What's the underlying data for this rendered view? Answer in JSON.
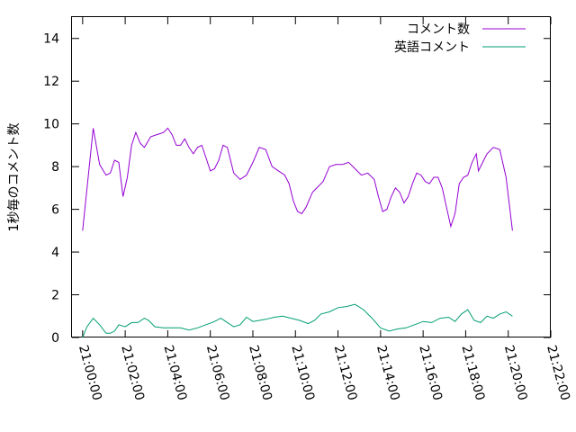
{
  "chart_data": {
    "type": "line",
    "ylabel": "1秒毎のコメント数",
    "xlabel": "",
    "title": "",
    "x_ticks": [
      "21:00:00",
      "21:02:00",
      "21:04:00",
      "21:06:00",
      "21:08:00",
      "21:10:00",
      "21:12:00",
      "21:14:00",
      "21:16:00",
      "21:18:00",
      "21:20:00",
      "21:22:00"
    ],
    "y_ticks": [
      "0",
      "2",
      "4",
      "6",
      "8",
      "10",
      "12",
      "14"
    ],
    "xlim_minutes": [
      -0.5,
      22
    ],
    "ylim": [
      0,
      15
    ],
    "grid": false,
    "legend_position": "top-right",
    "series": [
      {
        "name": "コメント数",
        "color": "#9400d3",
        "points": [
          [
            0.0,
            5.0
          ],
          [
            0.5,
            9.8
          ],
          [
            0.8,
            8.1
          ],
          [
            1.1,
            7.6
          ],
          [
            1.3,
            7.7
          ],
          [
            1.5,
            8.3
          ],
          [
            1.7,
            8.2
          ],
          [
            1.9,
            6.6
          ],
          [
            2.1,
            7.5
          ],
          [
            2.3,
            9.0
          ],
          [
            2.5,
            9.6
          ],
          [
            2.7,
            9.1
          ],
          [
            2.9,
            8.9
          ],
          [
            3.2,
            9.4
          ],
          [
            3.5,
            9.5
          ],
          [
            3.8,
            9.6
          ],
          [
            4.0,
            9.8
          ],
          [
            4.2,
            9.5
          ],
          [
            4.4,
            9.0
          ],
          [
            4.6,
            9.0
          ],
          [
            4.8,
            9.3
          ],
          [
            5.0,
            8.9
          ],
          [
            5.2,
            8.6
          ],
          [
            5.4,
            8.9
          ],
          [
            5.6,
            9.0
          ],
          [
            5.8,
            8.4
          ],
          [
            6.0,
            7.8
          ],
          [
            6.2,
            7.9
          ],
          [
            6.4,
            8.3
          ],
          [
            6.6,
            9.0
          ],
          [
            6.8,
            8.9
          ],
          [
            7.1,
            7.7
          ],
          [
            7.4,
            7.4
          ],
          [
            7.7,
            7.6
          ],
          [
            8.0,
            8.2
          ],
          [
            8.3,
            8.9
          ],
          [
            8.6,
            8.8
          ],
          [
            8.9,
            8.0
          ],
          [
            9.2,
            7.8
          ],
          [
            9.5,
            7.6
          ],
          [
            9.7,
            7.2
          ],
          [
            9.9,
            6.4
          ],
          [
            10.1,
            5.9
          ],
          [
            10.3,
            5.8
          ],
          [
            10.5,
            6.1
          ],
          [
            10.8,
            6.8
          ],
          [
            11.0,
            7.0
          ],
          [
            11.3,
            7.3
          ],
          [
            11.6,
            8.0
          ],
          [
            11.9,
            8.1
          ],
          [
            12.2,
            8.1
          ],
          [
            12.5,
            8.2
          ],
          [
            12.8,
            7.9
          ],
          [
            13.1,
            7.6
          ],
          [
            13.4,
            7.7
          ],
          [
            13.7,
            7.4
          ],
          [
            13.9,
            6.6
          ],
          [
            14.1,
            5.9
          ],
          [
            14.3,
            6.0
          ],
          [
            14.5,
            6.6
          ],
          [
            14.7,
            7.0
          ],
          [
            14.9,
            6.8
          ],
          [
            15.1,
            6.3
          ],
          [
            15.3,
            6.6
          ],
          [
            15.5,
            7.2
          ],
          [
            15.7,
            7.7
          ],
          [
            15.9,
            7.6
          ],
          [
            16.1,
            7.3
          ],
          [
            16.3,
            7.2
          ],
          [
            16.5,
            7.5
          ],
          [
            16.7,
            7.5
          ],
          [
            16.9,
            7.0
          ],
          [
            17.1,
            6.1
          ],
          [
            17.3,
            5.2
          ],
          [
            17.5,
            5.8
          ],
          [
            17.7,
            7.2
          ],
          [
            17.9,
            7.5
          ],
          [
            18.1,
            7.6
          ],
          [
            18.3,
            8.2
          ],
          [
            18.5,
            8.6
          ],
          [
            18.6,
            7.8
          ],
          [
            18.8,
            8.2
          ],
          [
            19.0,
            8.6
          ],
          [
            19.3,
            8.9
          ],
          [
            19.6,
            8.8
          ],
          [
            19.9,
            7.5
          ],
          [
            20.2,
            5.0
          ]
        ]
      },
      {
        "name": "英語コメント",
        "color": "#009e73",
        "points": [
          [
            0.0,
            0.0
          ],
          [
            0.2,
            0.5
          ],
          [
            0.5,
            0.9
          ],
          [
            0.8,
            0.6
          ],
          [
            1.1,
            0.2
          ],
          [
            1.3,
            0.2
          ],
          [
            1.5,
            0.3
          ],
          [
            1.7,
            0.6
          ],
          [
            2.0,
            0.5
          ],
          [
            2.3,
            0.7
          ],
          [
            2.6,
            0.7
          ],
          [
            2.9,
            0.9
          ],
          [
            3.1,
            0.8
          ],
          [
            3.4,
            0.5
          ],
          [
            3.8,
            0.45
          ],
          [
            4.2,
            0.45
          ],
          [
            4.6,
            0.45
          ],
          [
            5.0,
            0.35
          ],
          [
            5.4,
            0.45
          ],
          [
            5.8,
            0.6
          ],
          [
            6.2,
            0.75
          ],
          [
            6.5,
            0.9
          ],
          [
            6.8,
            0.7
          ],
          [
            7.1,
            0.5
          ],
          [
            7.4,
            0.6
          ],
          [
            7.7,
            0.95
          ],
          [
            8.0,
            0.75
          ],
          [
            8.3,
            0.8
          ],
          [
            8.6,
            0.85
          ],
          [
            9.0,
            0.95
          ],
          [
            9.4,
            1.0
          ],
          [
            9.8,
            0.9
          ],
          [
            10.2,
            0.8
          ],
          [
            10.6,
            0.65
          ],
          [
            10.9,
            0.8
          ],
          [
            11.2,
            1.1
          ],
          [
            11.6,
            1.2
          ],
          [
            12.0,
            1.4
          ],
          [
            12.4,
            1.45
          ],
          [
            12.8,
            1.55
          ],
          [
            13.2,
            1.3
          ],
          [
            13.6,
            0.9
          ],
          [
            14.0,
            0.45
          ],
          [
            14.4,
            0.3
          ],
          [
            14.8,
            0.4
          ],
          [
            15.2,
            0.45
          ],
          [
            15.6,
            0.6
          ],
          [
            16.0,
            0.75
          ],
          [
            16.4,
            0.7
          ],
          [
            16.8,
            0.9
          ],
          [
            17.2,
            0.95
          ],
          [
            17.5,
            0.75
          ],
          [
            17.8,
            1.1
          ],
          [
            18.1,
            1.3
          ],
          [
            18.4,
            0.8
          ],
          [
            18.7,
            0.7
          ],
          [
            19.0,
            1.0
          ],
          [
            19.3,
            0.9
          ],
          [
            19.6,
            1.1
          ],
          [
            19.9,
            1.2
          ],
          [
            20.2,
            1.0
          ]
        ]
      }
    ]
  }
}
